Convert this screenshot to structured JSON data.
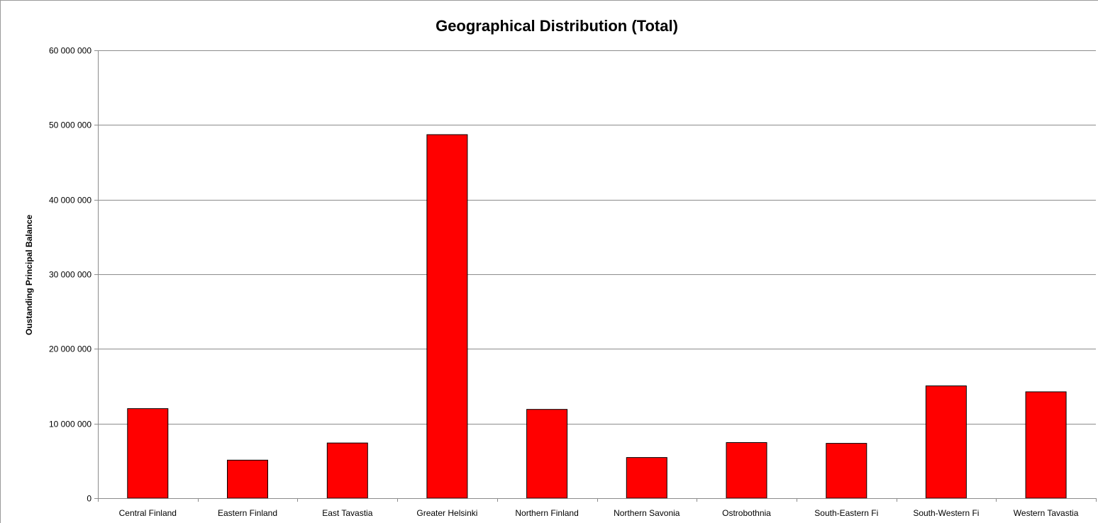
{
  "chart_data": {
    "type": "bar",
    "title": "Geographical Distribution (Total)",
    "xlabel": "",
    "ylabel": "Oustanding Principal Balance",
    "ylim": [
      0,
      60000000
    ],
    "yticks": [
      0,
      10000000,
      20000000,
      30000000,
      40000000,
      50000000,
      60000000
    ],
    "ytick_labels": [
      "0",
      "10 000 000",
      "20 000 000",
      "30 000 000",
      "40 000 000",
      "50 000 000",
      "60 000 000"
    ],
    "categories": [
      "Central Finland",
      "Eastern Finland",
      "East Tavastia",
      "Greater Helsinki",
      "Northern Finland",
      "Northern Savonia",
      "Ostrobothnia",
      "South-Eastern Fi",
      "South-Western Fi",
      "Western Tavastia"
    ],
    "values": [
      12000000,
      5100000,
      7400000,
      48700000,
      11900000,
      5450000,
      7450000,
      7350000,
      15050000,
      14250000
    ],
    "bar_color": "#ff0000",
    "bar_edge_color": "#000000",
    "grid": true,
    "legend": "none"
  }
}
